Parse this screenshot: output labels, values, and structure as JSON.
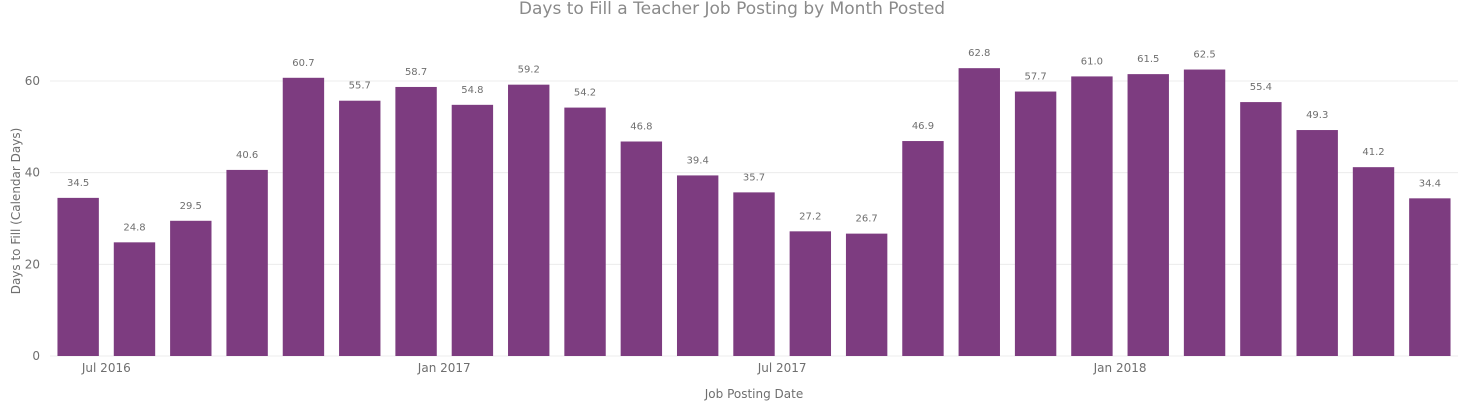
{
  "chart_data": {
    "type": "bar",
    "title": "Days to Fill a Teacher Job Posting by Month Posted",
    "xlabel": "Job Posting Date",
    "ylabel": "Days to Fill (Calendar Days)",
    "ylim": [
      0,
      70
    ],
    "yticks": [
      0,
      20,
      40,
      60
    ],
    "grid": true,
    "bar_color": "#7d3c80",
    "x_tick_labels": [
      {
        "label": "Jul 2016",
        "after_index": 0
      },
      {
        "label": "Jan 2017",
        "after_index": 6
      },
      {
        "label": "Jul 2017",
        "after_index": 12
      },
      {
        "label": "Jan 2018",
        "after_index": 18
      }
    ],
    "values": [
      34.5,
      24.8,
      29.5,
      40.6,
      60.7,
      55.7,
      58.7,
      54.8,
      59.2,
      54.2,
      46.8,
      39.4,
      35.7,
      27.2,
      26.7,
      46.9,
      62.8,
      57.7,
      61.0,
      61.5,
      62.5,
      55.4,
      49.3,
      41.2,
      34.4
    ],
    "data_labels": [
      "34.5",
      "24.8",
      "29.5",
      "40.6",
      "60.7",
      "55.7",
      "58.7",
      "54.8",
      "59.2",
      "54.2",
      "46.8",
      "39.4",
      "35.7",
      "27.2",
      "26.7",
      "46.9",
      "62.8",
      "57.7",
      "61.0",
      "61.5",
      "62.5",
      "55.4",
      "49.3",
      "41.2",
      "34.4"
    ]
  }
}
